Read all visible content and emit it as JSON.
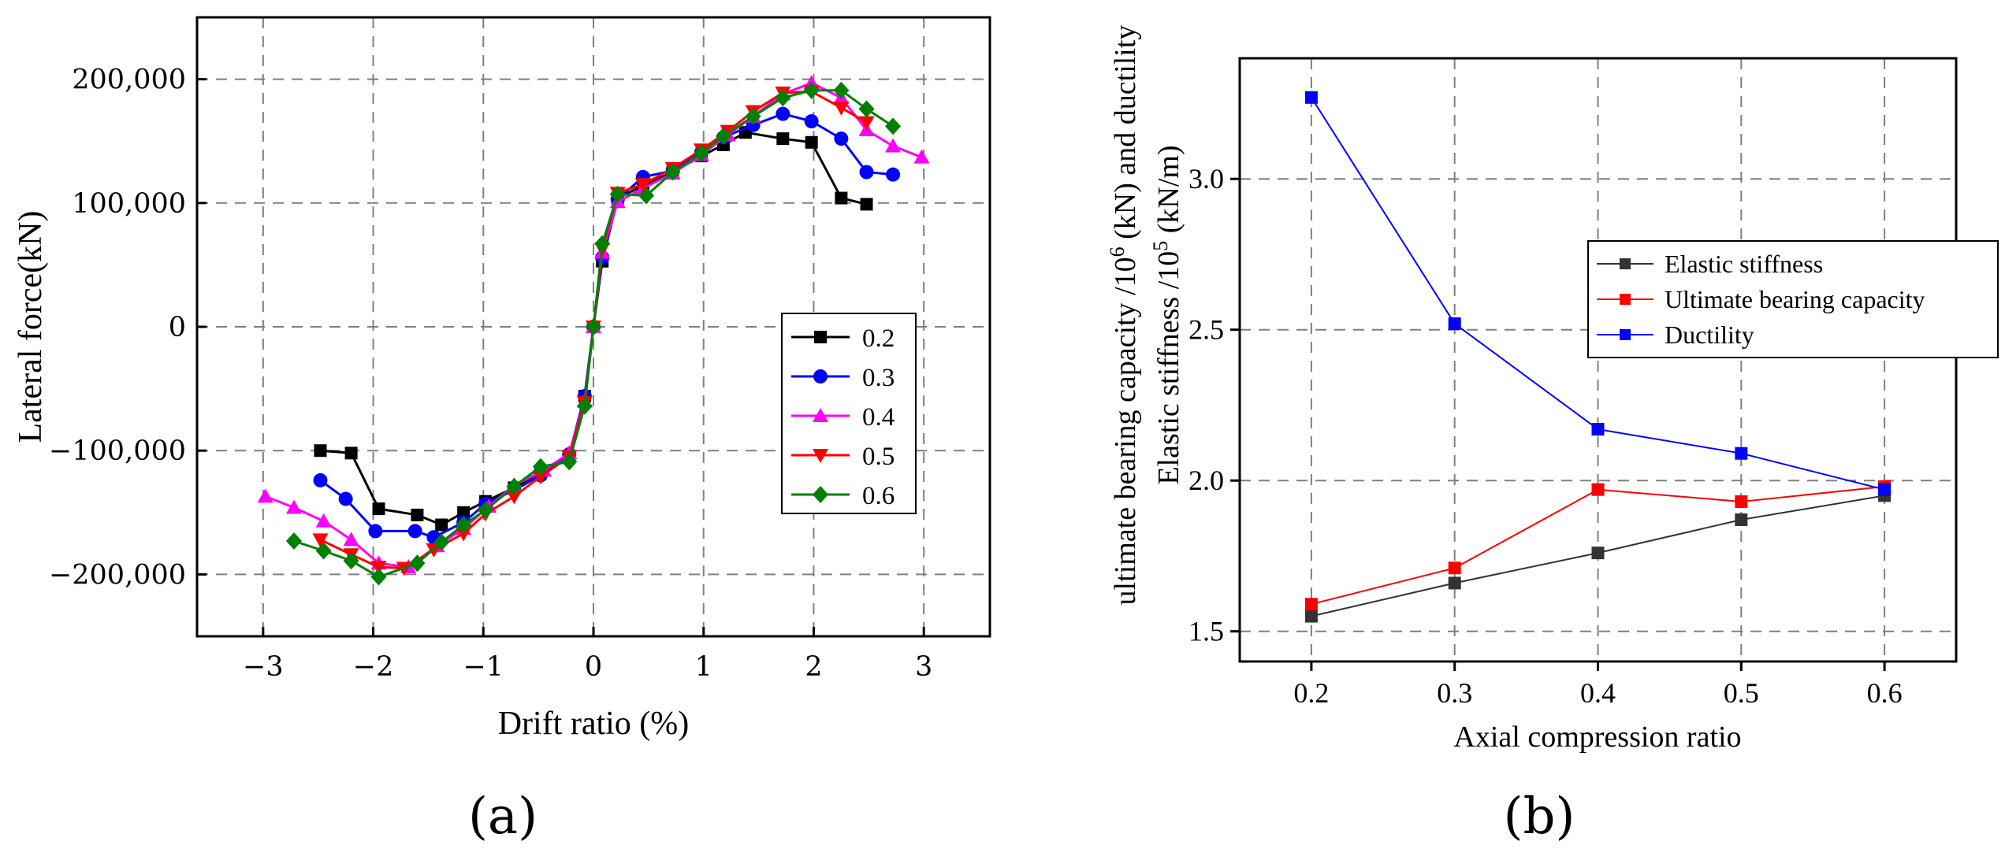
{
  "chart_data": [
    {
      "panel_label": "(a)",
      "type": "line",
      "xlabel": "Drift ratio (%)",
      "ylabel": "Lateral force(kN)",
      "xlim": [
        -3.6,
        3.6
      ],
      "ylim": [
        -250000,
        250000
      ],
      "x_ticks": [
        -3,
        -2,
        -1,
        0,
        1,
        2,
        3
      ],
      "x_tick_labels": [
        "−3",
        "−2",
        "−1",
        "0",
        "1",
        "2",
        "3"
      ],
      "y_ticks": [
        -200000,
        -100000,
        0,
        100000,
        200000
      ],
      "y_tick_labels": [
        "−200,000",
        "−100,000",
        "0",
        "100,000",
        "200,000"
      ],
      "grid": true,
      "legend_position": "center-right",
      "series": [
        {
          "name": "0.2",
          "color": "#000000",
          "marker": "square",
          "x": [
            -2.48,
            -2.2,
            -1.95,
            -1.6,
            -1.38,
            -1.18,
            -0.98,
            -0.72,
            -0.48,
            -0.22,
            -0.08,
            0.0,
            0.08,
            0.22,
            0.45,
            0.72,
            0.98,
            1.18,
            1.38,
            1.72,
            1.98,
            2.25,
            2.48
          ],
          "y": [
            -100000,
            -102000,
            -147000,
            -152000,
            -160000,
            -150000,
            -141000,
            -130000,
            -118000,
            -105000,
            -56000,
            0,
            53000,
            104000,
            114000,
            125000,
            138000,
            147000,
            157000,
            152000,
            149000,
            104000,
            99000
          ]
        },
        {
          "name": "0.3",
          "color": "#0000ff",
          "marker": "circle",
          "x": [
            -2.48,
            -2.25,
            -1.98,
            -1.62,
            -1.45,
            -1.18,
            -0.98,
            -0.72,
            -0.48,
            -0.22,
            -0.08,
            0.0,
            0.08,
            0.22,
            0.45,
            0.72,
            0.98,
            1.18,
            1.45,
            1.72,
            1.98,
            2.25,
            2.48,
            2.72
          ],
          "y": [
            -124000,
            -139000,
            -165000,
            -165000,
            -170000,
            -158000,
            -143000,
            -132000,
            -120000,
            -103000,
            -56000,
            0,
            56000,
            103000,
            121000,
            126000,
            141000,
            153000,
            163000,
            172000,
            166000,
            152000,
            125000,
            123000
          ]
        },
        {
          "name": "0.4",
          "color": "#ff00ff",
          "marker": "triangle-up",
          "x": [
            -2.98,
            -2.72,
            -2.45,
            -2.2,
            -1.95,
            -1.68,
            -1.42,
            -1.18,
            -0.95,
            -0.72,
            -0.45,
            -0.22,
            -0.08,
            0.0,
            0.08,
            0.22,
            0.45,
            0.72,
            0.98,
            1.22,
            1.45,
            1.72,
            1.98,
            2.25,
            2.48,
            2.72,
            2.98
          ],
          "y": [
            -137000,
            -146000,
            -157000,
            -172000,
            -191000,
            -194000,
            -177000,
            -163000,
            -145000,
            -128000,
            -116000,
            -102000,
            -60000,
            0,
            60000,
            101000,
            112000,
            124000,
            139000,
            155000,
            170000,
            188000,
            197000,
            185000,
            159000,
            146000,
            137000
          ]
        },
        {
          "name": "0.5",
          "color": "#ff0000",
          "marker": "triangle-down",
          "x": [
            -2.48,
            -2.2,
            -1.95,
            -1.72,
            -1.45,
            -1.18,
            -0.98,
            -0.72,
            -0.48,
            -0.22,
            -0.08,
            0.0,
            0.08,
            0.22,
            0.45,
            0.72,
            0.98,
            1.22,
            1.45,
            1.72,
            1.98,
            2.25,
            2.48
          ],
          "y": [
            -172000,
            -184000,
            -194000,
            -195000,
            -180000,
            -167000,
            -151000,
            -137000,
            -121000,
            -105000,
            -61000,
            0,
            63000,
            108000,
            115000,
            128000,
            143000,
            158000,
            174000,
            189000,
            190000,
            177000,
            165000
          ]
        },
        {
          "name": "0.6",
          "color": "#008000",
          "marker": "diamond",
          "x": [
            -2.72,
            -2.45,
            -2.2,
            -1.95,
            -1.6,
            -1.38,
            -1.18,
            -0.98,
            -0.72,
            -0.48,
            -0.22,
            -0.08,
            0.0,
            0.08,
            0.22,
            0.48,
            0.72,
            0.98,
            1.18,
            1.45,
            1.72,
            1.98,
            2.25,
            2.48,
            2.72
          ],
          "y": [
            -173000,
            -181000,
            -189000,
            -202000,
            -191000,
            -174000,
            -160000,
            -148000,
            -129000,
            -113000,
            -109000,
            -64000,
            0,
            67000,
            107000,
            106000,
            125000,
            140000,
            154000,
            170000,
            185000,
            191000,
            191000,
            176000,
            162000
          ]
        }
      ]
    },
    {
      "panel_label": "(b)",
      "type": "line",
      "xlabel": "Axial compression ratio",
      "ylabel_line1": "ultimate bearing capacity /10",
      "ylabel_line1_sup": "6",
      "ylabel_line1_tail": " (kN) and ductility",
      "ylabel_line2": "Elastic stiffness /10",
      "ylabel_line2_sup": "5",
      "ylabel_line2_tail": " (kN/m)",
      "xlim": [
        0.15,
        0.65
      ],
      "ylim": [
        1.4,
        3.4
      ],
      "x_ticks": [
        0.2,
        0.3,
        0.4,
        0.5,
        0.6
      ],
      "x_tick_labels": [
        "0.2",
        "0.3",
        "0.4",
        "0.5",
        "0.6"
      ],
      "y_ticks": [
        1.5,
        2.0,
        2.5,
        3.0
      ],
      "y_tick_labels": [
        "1.5",
        "2.0",
        "2.5",
        "3.0"
      ],
      "grid": true,
      "legend_position": "right",
      "series": [
        {
          "name": "Elastic stiffness",
          "color": "#333333",
          "marker": "square",
          "x": [
            0.2,
            0.3,
            0.4,
            0.5,
            0.6
          ],
          "y": [
            1.55,
            1.66,
            1.76,
            1.87,
            1.95
          ]
        },
        {
          "name": "Ultimate bearing capacity",
          "color": "#ff0000",
          "marker": "square",
          "x": [
            0.2,
            0.3,
            0.4,
            0.5,
            0.6
          ],
          "y": [
            1.59,
            1.71,
            1.97,
            1.93,
            1.98
          ]
        },
        {
          "name": "Ductility",
          "color": "#0000ff",
          "marker": "square",
          "x": [
            0.2,
            0.3,
            0.4,
            0.5,
            0.6
          ],
          "y": [
            3.27,
            2.52,
            2.17,
            2.09,
            1.97
          ]
        }
      ]
    }
  ]
}
